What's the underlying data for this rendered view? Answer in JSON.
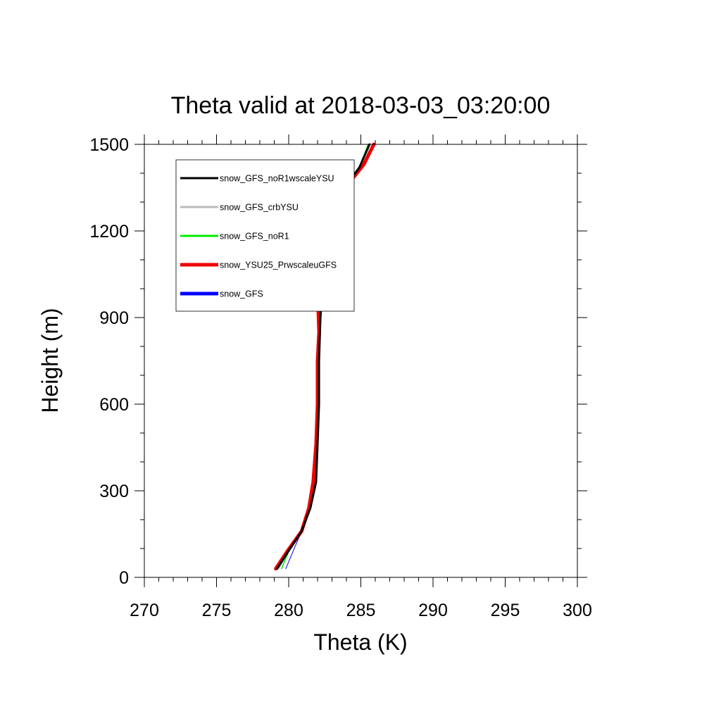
{
  "chart_data": {
    "type": "line",
    "title": "Theta valid at 2018-03-03_03:20:00",
    "xlabel": "Theta (K)",
    "ylabel": "Height (m)",
    "xlim": [
      270,
      300
    ],
    "ylim": [
      0,
      1500
    ],
    "xticks": [
      270,
      275,
      280,
      285,
      290,
      295,
      300
    ],
    "yticks": [
      0,
      300,
      600,
      900,
      1200,
      1500
    ],
    "xtick_labels": [
      "270",
      "275",
      "280",
      "285",
      "290",
      "295",
      "300"
    ],
    "ytick_labels": [
      "0",
      "300",
      "600",
      "900",
      "1200",
      "1500"
    ],
    "grid": false,
    "legend_position": "top-left",
    "series": [
      {
        "name": "snow_GFS",
        "color": "#0000ff",
        "width": 1,
        "points": [
          [
            279.8,
            30
          ],
          [
            280.3,
            90
          ],
          [
            280.9,
            160
          ],
          [
            281.4,
            240
          ],
          [
            281.7,
            330
          ],
          [
            281.9,
            460
          ],
          [
            282.0,
            600
          ],
          [
            282.1,
            750
          ],
          [
            282.2,
            900
          ],
          [
            282.4,
            1050
          ],
          [
            282.8,
            1200
          ],
          [
            283.3,
            1300
          ],
          [
            284.2,
            1380
          ],
          [
            284.9,
            1420
          ],
          [
            285.5,
            1500
          ]
        ]
      },
      {
        "name": "snow_GFS_noR1",
        "color": "#00ee00",
        "width": 1.5,
        "points": [
          [
            279.5,
            30
          ],
          [
            280.0,
            90
          ],
          [
            280.8,
            160
          ],
          [
            281.4,
            240
          ],
          [
            281.8,
            330
          ],
          [
            282.0,
            460
          ],
          [
            282.1,
            600
          ],
          [
            282.1,
            750
          ],
          [
            282.2,
            900
          ],
          [
            282.4,
            1050
          ],
          [
            282.8,
            1200
          ],
          [
            283.3,
            1300
          ],
          [
            284.3,
            1380
          ],
          [
            284.9,
            1420
          ],
          [
            285.5,
            1500
          ]
        ]
      },
      {
        "name": "snow_GFS_crbYSU",
        "color": "#bbbbbb",
        "width": 1.5,
        "points": [
          [
            279.3,
            30
          ],
          [
            280.0,
            90
          ],
          [
            280.9,
            160
          ],
          [
            281.5,
            240
          ],
          [
            281.8,
            330
          ],
          [
            282.0,
            460
          ],
          [
            282.1,
            600
          ],
          [
            282.1,
            750
          ],
          [
            282.2,
            900
          ],
          [
            282.4,
            1050
          ],
          [
            282.8,
            1200
          ],
          [
            283.3,
            1300
          ],
          [
            284.3,
            1380
          ],
          [
            284.9,
            1420
          ],
          [
            285.6,
            1500
          ]
        ]
      },
      {
        "name": "snow_YSU25_PrwscaleuGFS",
        "color": "#ee0000",
        "width": 5,
        "points": [
          [
            279.1,
            30
          ],
          [
            279.9,
            90
          ],
          [
            280.9,
            160
          ],
          [
            281.4,
            240
          ],
          [
            281.7,
            330
          ],
          [
            281.9,
            460
          ],
          [
            282.0,
            600
          ],
          [
            282.0,
            750
          ],
          [
            282.1,
            850
          ],
          [
            282.0,
            1000
          ],
          [
            282.5,
            1200
          ],
          [
            283.5,
            1300
          ],
          [
            284.4,
            1380
          ],
          [
            285.2,
            1430
          ],
          [
            285.9,
            1500
          ]
        ]
      },
      {
        "name": "snow_GFS_noR1wscaleYSU",
        "color": "#000000",
        "width": 3,
        "points": [
          [
            279.2,
            30
          ],
          [
            280.1,
            100
          ],
          [
            280.9,
            160
          ],
          [
            281.5,
            240
          ],
          [
            281.9,
            330
          ],
          [
            282.0,
            460
          ],
          [
            282.1,
            600
          ],
          [
            282.1,
            750
          ],
          [
            282.2,
            900
          ],
          [
            282.4,
            1050
          ],
          [
            282.8,
            1200
          ],
          [
            283.3,
            1300
          ],
          [
            284.3,
            1380
          ],
          [
            284.9,
            1420
          ],
          [
            285.6,
            1500
          ]
        ]
      }
    ],
    "legend": [
      {
        "name": "snow_GFS_noR1wscaleYSU",
        "color": "#000000",
        "width": 3
      },
      {
        "name": "snow_GFS_crbYSU",
        "color": "#bbbbbb",
        "width": 3
      },
      {
        "name": "snow_GFS_noR1",
        "color": "#00ee00",
        "width": 3
      },
      {
        "name": "snow_YSU25_PrwscaleuGFS",
        "color": "#ee0000",
        "width": 5
      },
      {
        "name": "snow_GFS",
        "color": "#0000ff",
        "width": 5
      }
    ]
  }
}
